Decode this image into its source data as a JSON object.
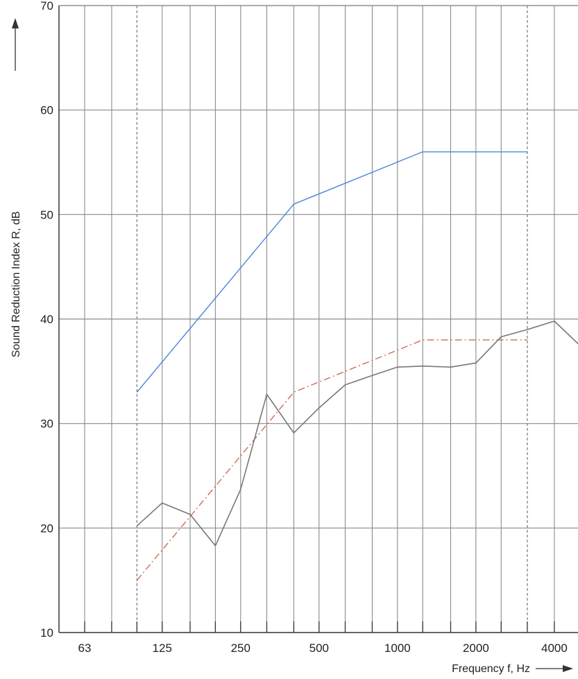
{
  "chart_data": {
    "type": "line",
    "xlabel": "Frequency f, Hz",
    "ylabel": "Sound Reduction Index R, dB",
    "x_scale": "log",
    "x_ticks": [
      63,
      125,
      250,
      500,
      1000,
      2000,
      4000
    ],
    "xlim": [
      50,
      5000
    ],
    "ylim": [
      10,
      70
    ],
    "y_ticks": [
      10,
      20,
      30,
      40,
      50,
      60,
      70
    ],
    "grid": true,
    "legend": "none",
    "reference_lines_x": [
      100,
      3150
    ],
    "series": [
      {
        "color": "#4a86d8",
        "style": "solid",
        "x": [
          100,
          400,
          1250,
          3150
        ],
        "y": [
          33,
          51,
          56,
          56
        ]
      },
      {
        "color": "#d06a55",
        "style": "dashdot",
        "x": [
          100,
          400,
          1250,
          3150
        ],
        "y": [
          15,
          33,
          38,
          38
        ]
      },
      {
        "color": "#777777",
        "style": "solid",
        "x": [
          100,
          125,
          160,
          200,
          250,
          315,
          400,
          500,
          630,
          800,
          1000,
          1250,
          1600,
          2000,
          2500,
          3150,
          4000,
          5000
        ],
        "y": [
          20.2,
          22.4,
          21.3,
          18.3,
          23.7,
          32.8,
          29.1,
          31.5,
          33.7,
          34.6,
          35.4,
          35.5,
          35.4,
          35.8,
          38.3,
          39,
          39.8,
          37.5
        ]
      }
    ]
  }
}
